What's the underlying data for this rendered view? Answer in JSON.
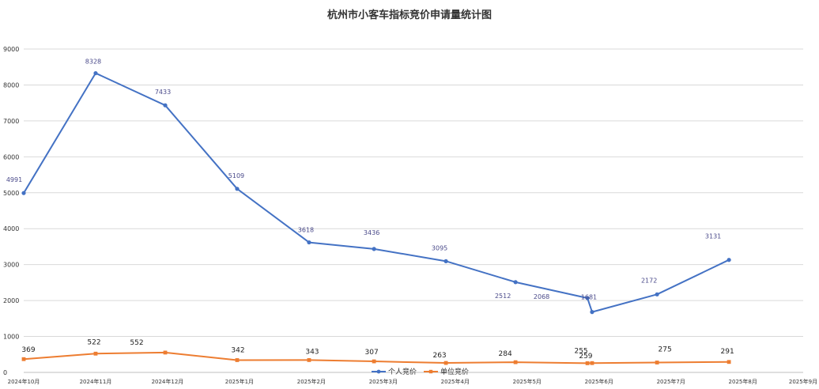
{
  "chart_data": {
    "type": "line",
    "title": "杭州市小客车指标竞价申请量统计图",
    "ylim": [
      0,
      9000
    ],
    "yticks": [
      0,
      1000,
      2000,
      3000,
      4000,
      5000,
      6000,
      7000,
      8000,
      9000
    ],
    "x_axis_type": "date",
    "x_range": [
      "2024-10-25",
      "2025-09-26"
    ],
    "x_tick_labels": [
      {
        "date": "2024-10-25",
        "label": "2024年10月"
      },
      {
        "date": "2024-11-25",
        "label": "2024年11月"
      },
      {
        "date": "2024-12-26",
        "label": "2024年12月"
      },
      {
        "date": "2025-01-26",
        "label": "2025年1月"
      },
      {
        "date": "2025-02-26",
        "label": "2025年2月"
      },
      {
        "date": "2025-03-29",
        "label": "2025年3月"
      },
      {
        "date": "2025-04-29",
        "label": "2025年4月"
      },
      {
        "date": "2025-05-30",
        "label": "2025年5月"
      },
      {
        "date": "2025-06-30",
        "label": "2025年6月"
      },
      {
        "date": "2025-07-31",
        "label": "2025年7月"
      },
      {
        "date": "2025-08-31",
        "label": "2025年8月"
      },
      {
        "date": "2025-09-26",
        "label": "2025年9月"
      }
    ],
    "grid": true,
    "legend_position": "bottom",
    "series": [
      {
        "name": "个人竞价",
        "color": "#4472c4",
        "marker": "circle",
        "x": [
          "2024-10-25",
          "2024-11-25",
          "2024-12-25",
          "2025-01-25",
          "2025-02-25",
          "2025-03-25",
          "2025-04-25",
          "2025-05-25",
          "2025-06-25",
          "2025-06-27",
          "2025-07-25",
          "2025-08-25"
        ],
        "values": [
          4991,
          8328,
          7433,
          5109,
          3618,
          3436,
          3095,
          2512,
          2068,
          1681,
          2172,
          3131
        ]
      },
      {
        "name": "单位竞价",
        "color": "#ed7d31",
        "marker": "square",
        "x": [
          "2024-10-25",
          "2024-11-25",
          "2024-12-25",
          "2025-01-25",
          "2025-02-25",
          "2025-03-25",
          "2025-04-25",
          "2025-05-25",
          "2025-06-25",
          "2025-06-27",
          "2025-07-25",
          "2025-08-25"
        ],
        "values": [
          369,
          522,
          552,
          342,
          343,
          307,
          263,
          284,
          255,
          259,
          275,
          291
        ]
      }
    ]
  }
}
